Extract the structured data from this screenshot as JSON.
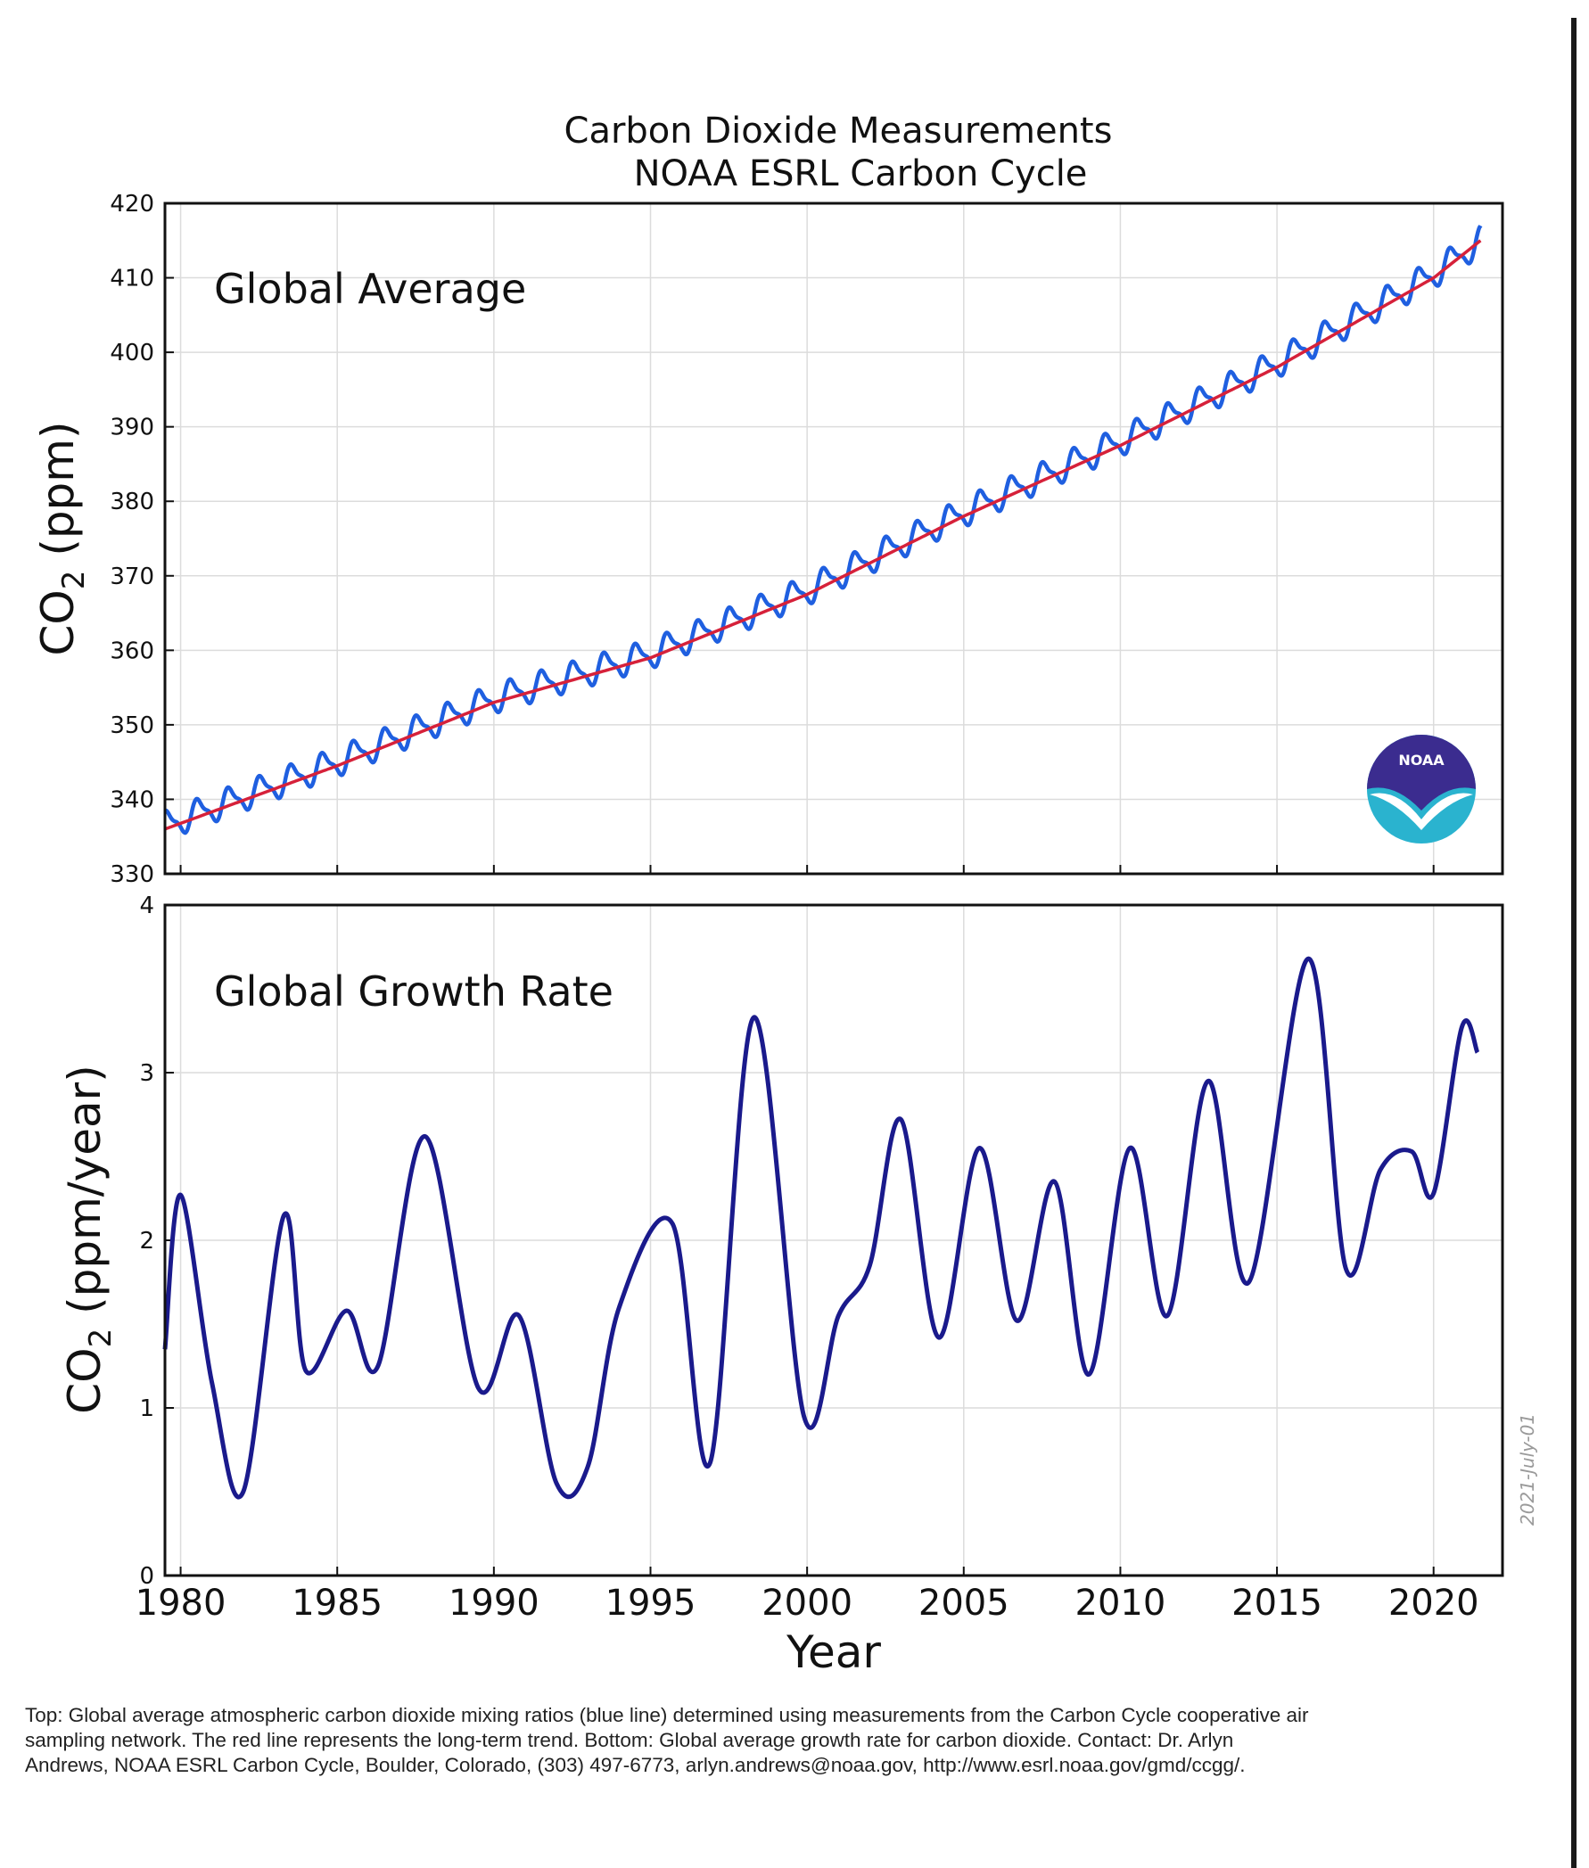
{
  "chart_data": [
    {
      "type": "line",
      "title": "Carbon Dioxide Measurements",
      "subtitle": "NOAA ESRL Carbon Cycle",
      "panel_label": "Global Average",
      "ylabel_main": "CO",
      "ylabel_sub": "2",
      "ylabel_unit": " (ppm)",
      "xlim": [
        1979.5,
        2022.2
      ],
      "ylim": [
        330,
        420
      ],
      "yticks": [
        330,
        340,
        350,
        360,
        370,
        380,
        390,
        400,
        410,
        420
      ],
      "grid": true,
      "series": [
        {
          "name": "Monthly global average (blue line)",
          "color": "#1f5fe0",
          "seasonal_amplitude_ppm": 1.7,
          "x": [
            1979.5,
            1985,
            1990,
            1995,
            2000,
            2005,
            2010,
            2015,
            2020,
            2021.5
          ],
          "y": [
            336.5,
            345.0,
            353.5,
            359.5,
            368.0,
            378.5,
            388.0,
            398.5,
            410.5,
            415.0
          ]
        },
        {
          "name": "Long-term trend (red line)",
          "color": "#d6213a",
          "x": [
            1979.5,
            1985,
            1990,
            1995,
            2000,
            2005,
            2010,
            2015,
            2020,
            2021.5
          ],
          "y": [
            336.0,
            344.5,
            353.0,
            359.0,
            367.5,
            378.0,
            387.5,
            398.0,
            410.0,
            415.0
          ]
        }
      ]
    },
    {
      "type": "line",
      "panel_label": "Global Growth Rate",
      "ylabel_main": "CO",
      "ylabel_sub": "2",
      "ylabel_unit": " (ppm/year)",
      "xlabel": "Year",
      "xlim": [
        1979.5,
        2022.2
      ],
      "ylim": [
        0,
        4
      ],
      "yticks": [
        0,
        1,
        2,
        3,
        4
      ],
      "xticks": [
        1980,
        1985,
        1990,
        1995,
        2000,
        2005,
        2010,
        2015,
        2020
      ],
      "grid": true,
      "series": [
        {
          "name": "Global growth rate",
          "color": "#1a1a8c",
          "x": [
            1979.5,
            1980.0,
            1981.0,
            1982.0,
            1983.3,
            1984.0,
            1985.3,
            1986.3,
            1987.8,
            1989.5,
            1990.8,
            1992.0,
            1993.0,
            1994.0,
            1995.7,
            1996.9,
            1998.3,
            1999.9,
            2001.0,
            2002.0,
            2003.0,
            2004.2,
            2005.5,
            2006.7,
            2007.9,
            2009.0,
            2010.3,
            2011.5,
            2012.8,
            2014.1,
            2016.0,
            2017.2,
            2018.3,
            2019.3,
            2020.0,
            2020.9,
            2021.4
          ],
          "y": [
            1.35,
            2.27,
            1.15,
            0.5,
            2.15,
            1.22,
            1.58,
            1.25,
            2.62,
            1.12,
            1.55,
            0.55,
            0.65,
            1.6,
            2.1,
            0.67,
            3.33,
            0.95,
            1.55,
            1.85,
            2.72,
            1.42,
            2.55,
            1.52,
            2.35,
            1.2,
            2.55,
            1.55,
            2.95,
            1.75,
            3.68,
            1.83,
            2.42,
            2.53,
            2.28,
            3.27,
            3.12
          ]
        }
      ]
    }
  ],
  "logo": {
    "name": "NOAA",
    "text": "NOAA"
  },
  "date_stamp": "2021-July-01",
  "caption": "Top:  Global average atmospheric carbon dioxide mixing ratios (blue line) determined using measurements from the Carbon Cycle cooperative air sampling network.  The red line represents the long-term trend.  Bottom:  Global average growth rate for carbon dioxide.  Contact:  Dr. Arlyn Andrews, NOAA ESRL Carbon Cycle, Boulder, Colorado, (303) 497-6773, arlyn.andrews@noaa.gov, http://www.esrl.noaa.gov/gmd/ccgg/."
}
